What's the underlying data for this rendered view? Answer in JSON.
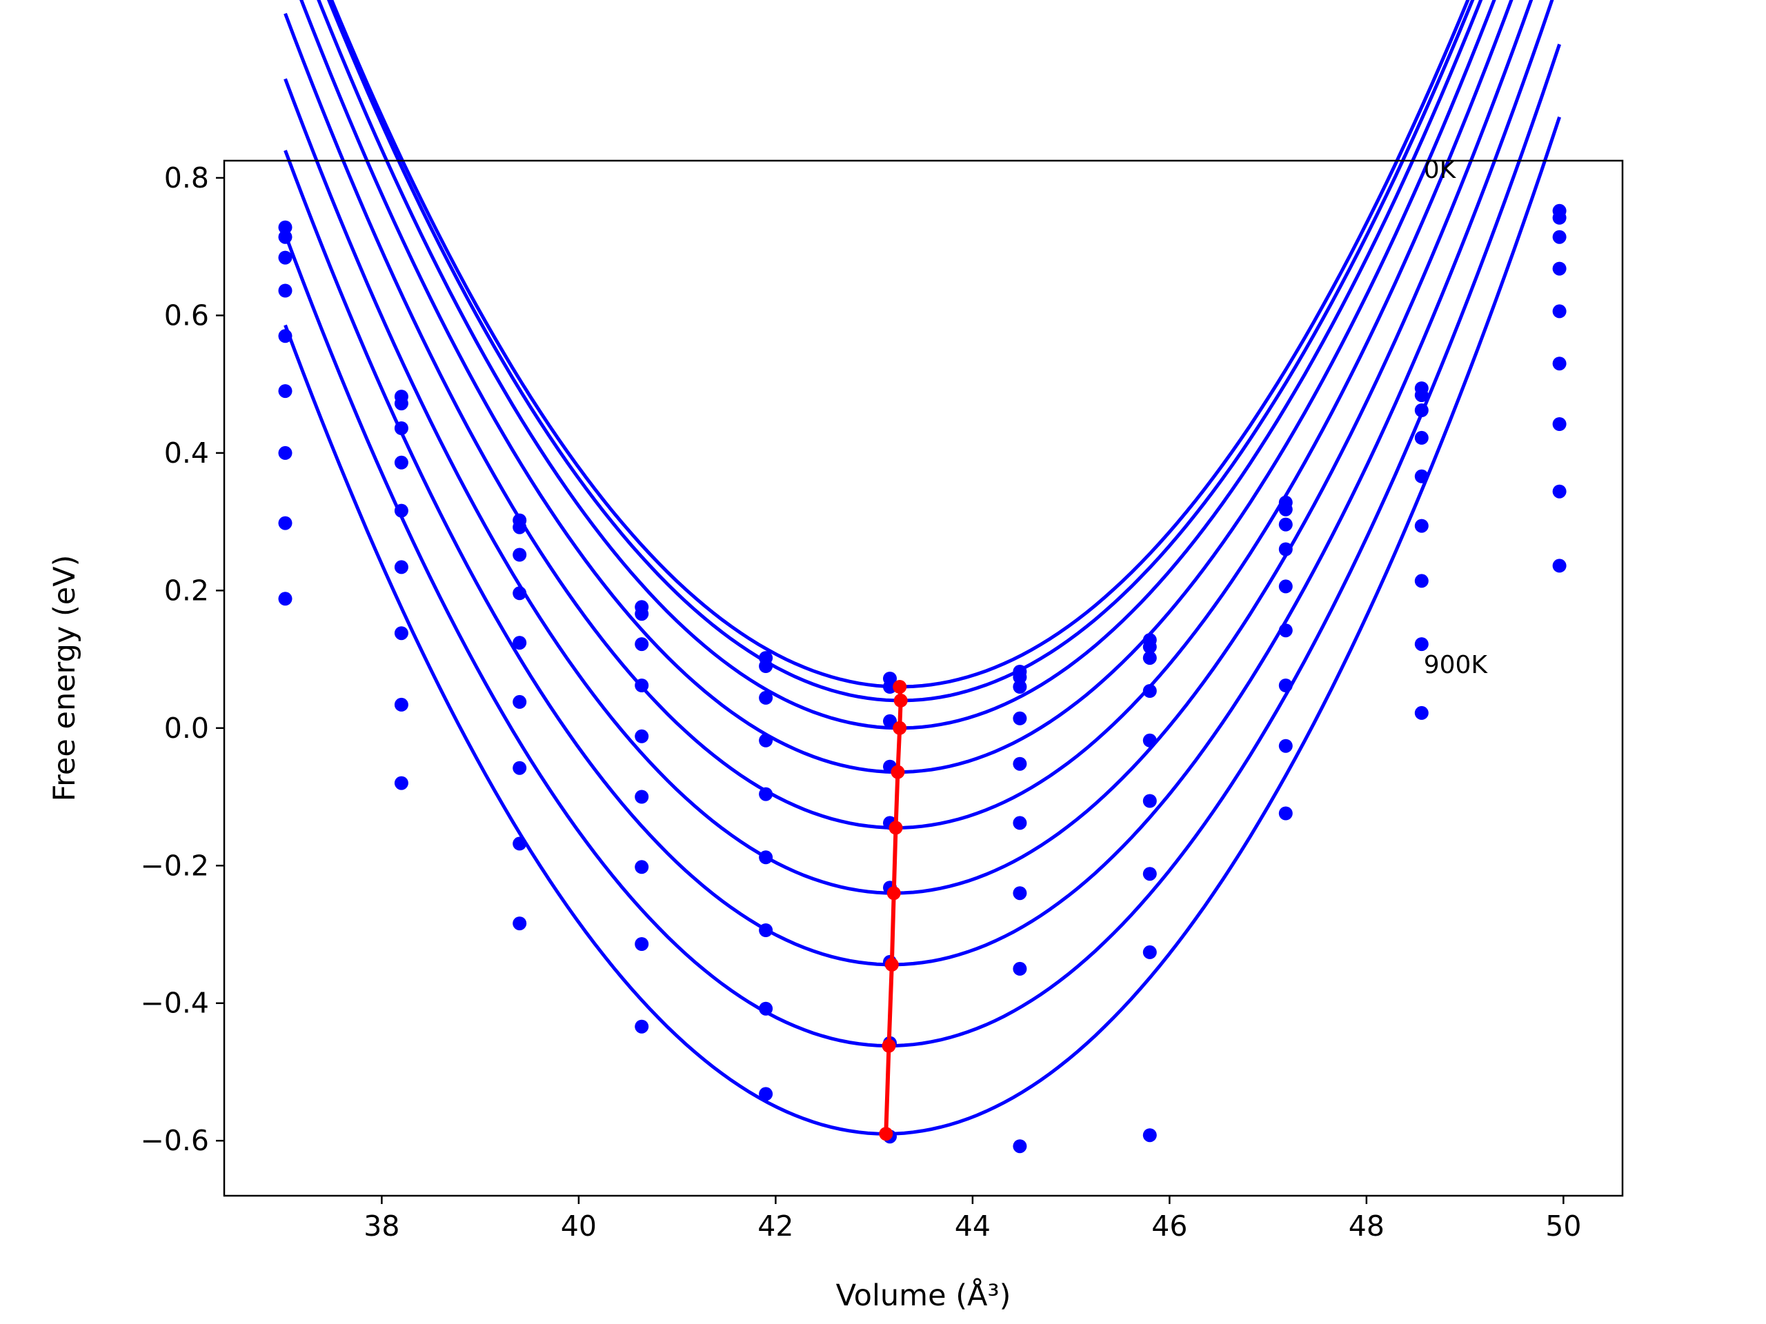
{
  "chart_data": {
    "type": "scatter",
    "title": "",
    "xlabel": "Volume (Å³)",
    "ylabel": "Free energy (eV)",
    "xlim": [
      36.4,
      50.6
    ],
    "ylim": [
      -0.68,
      0.825
    ],
    "xticks": [
      38,
      40,
      42,
      44,
      46,
      48,
      50
    ],
    "yticks": [
      -0.6,
      -0.4,
      -0.2,
      0.0,
      0.2,
      0.4,
      0.6,
      0.8
    ],
    "xtick_labels": [
      "38",
      "40",
      "42",
      "44",
      "46",
      "48",
      "50"
    ],
    "ytick_labels": [
      "−0.6",
      "−0.4",
      "−0.2",
      "0.0",
      "0.2",
      "0.4",
      "0.6",
      "0.8"
    ],
    "grid": false,
    "legend": "none",
    "colors": {
      "data": "#0000ff",
      "minimum": "#ff0000"
    },
    "annotations": [
      {
        "text": "0K",
        "x": 48.58,
        "y": 0.8
      },
      {
        "text": "900K",
        "x": 48.58,
        "y": 0.08
      }
    ],
    "x": [
      37.02,
      38.2,
      39.4,
      40.64,
      41.9,
      43.16,
      44.48,
      45.8,
      47.18,
      48.56,
      49.96
    ],
    "series": [
      {
        "values": [
          0.728,
          0.482,
          0.302,
          0.176,
          0.102,
          0.072,
          0.082,
          0.128,
          0.328,
          0.494,
          0.752
        ]
      },
      {
        "values": [
          0.714,
          0.472,
          0.292,
          0.166,
          0.09,
          0.06,
          0.074,
          0.118,
          0.318,
          0.484,
          0.742
        ]
      },
      {
        "values": [
          0.684,
          0.436,
          0.252,
          0.122,
          0.044,
          0.01,
          0.06,
          0.102,
          0.296,
          0.462,
          0.714
        ]
      },
      {
        "values": [
          0.636,
          0.386,
          0.196,
          0.062,
          -0.018,
          -0.056,
          0.014,
          0.054,
          0.26,
          0.422,
          0.668
        ]
      },
      {
        "values": [
          0.57,
          0.316,
          0.124,
          -0.012,
          -0.096,
          -0.138,
          -0.052,
          -0.018,
          0.206,
          0.366,
          0.606
        ]
      },
      {
        "values": [
          0.49,
          0.234,
          0.038,
          -0.1,
          -0.188,
          -0.232,
          -0.138,
          -0.106,
          0.142,
          0.294,
          0.53
        ]
      },
      {
        "values": [
          0.4,
          0.138,
          -0.058,
          -0.202,
          -0.294,
          -0.34,
          -0.24,
          -0.212,
          0.062,
          0.214,
          0.442
        ]
      },
      {
        "values": [
          0.298,
          0.034,
          -0.168,
          -0.314,
          -0.408,
          -0.458,
          -0.35,
          -0.326,
          -0.026,
          0.122,
          0.344
        ]
      },
      {
        "values": [
          0.188,
          -0.08,
          -0.284,
          -0.434,
          -0.532,
          -0.594,
          -0.608,
          -0.592,
          -0.124,
          0.022,
          0.236
        ]
      }
    ],
    "fit_curves": [
      {
        "v_min": 43.26,
        "e_min": 0.06,
        "a": 0.03
      },
      {
        "v_min": 43.27,
        "e_min": 0.04,
        "a": 0.0302
      },
      {
        "v_min": 43.26,
        "e_min": 0.0,
        "a": 0.0304
      },
      {
        "v_min": 43.24,
        "e_min": -0.064,
        "a": 0.0306
      },
      {
        "v_min": 43.22,
        "e_min": -0.145,
        "a": 0.0308
      },
      {
        "v_min": 43.2,
        "e_min": -0.24,
        "a": 0.031
      },
      {
        "v_min": 43.18,
        "e_min": -0.344,
        "a": 0.0312
      },
      {
        "v_min": 43.15,
        "e_min": -0.462,
        "a": 0.0314
      },
      {
        "v_min": 43.12,
        "e_min": -0.59,
        "a": 0.0316
      }
    ],
    "minimum_path": {
      "x": [
        43.26,
        43.27,
        43.26,
        43.24,
        43.22,
        43.2,
        43.18,
        43.15,
        43.12
      ],
      "y": [
        0.06,
        0.04,
        0.0,
        -0.064,
        -0.145,
        -0.24,
        -0.344,
        -0.462,
        -0.59
      ]
    }
  }
}
